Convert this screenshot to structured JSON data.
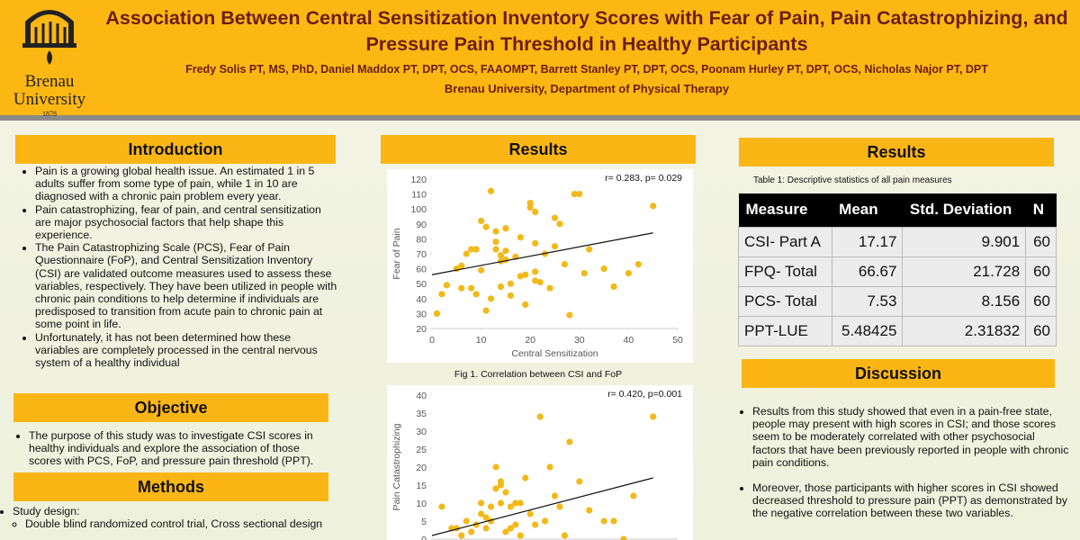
{
  "header": {
    "title": "Association Between Central Sensitization Inventory Scores with Fear of Pain, Pain Catastrophizing, and Pressure Pain Threshold in Healthy Participants",
    "authors": "Fredy Solis PT, MS, PhD, Daniel Maddox PT, DPT, OCS, FAAOMPT, Barrett Stanley PT, DPT, OCS, Poonam Hurley PT, DPT, OCS, Nicholas Najor PT, DPT",
    "affiliation": "Brenau University, Department of Physical Therapy",
    "logo": {
      "name": "Brenau",
      "subname": "University",
      "year": "1878"
    }
  },
  "introduction": {
    "heading": "Introduction",
    "bullets": [
      "Pain is a growing global health issue. An estimated 1 in 5 adults suffer from some type of pain, while 1 in 10 are diagnosed with a chronic pain problem every year.",
      "Pain catastrophizing, fear of pain, and central sensitization are major psychosocial factors that help shape this experience.",
      "The Pain Catastrophizing Scale (PCS), Fear of Pain Questionnaire (FoP), and Central Sensitization Inventory (CSI) are validated outcome measures used to assess these variables, respectively. They have been utilized in people with chronic pain conditions to help determine if individuals are predisposed to transition from acute pain to chronic pain at some point in life.",
      "Unfortunately, it has not been determined how these variables are completely processed in the central nervous system of a healthy individual"
    ]
  },
  "objective": {
    "heading": "Objective",
    "bullets": [
      "The purpose of this study was to investigate CSI scores in healthy individuals and explore the association of those scores with PCS, FoP, and pressure pain threshold (PPT)."
    ]
  },
  "methods": {
    "heading": "Methods",
    "item": "Study design:",
    "subitem": "Double blind randomized control trial, Cross sectional design"
  },
  "results_figures": {
    "heading": "Results",
    "figures": [
      {
        "type": "scatter",
        "annotation": "r= 0.283, p= 0.029",
        "caption": "Fig 1. Correlation between CSI and FoP",
        "xlabel": "Central Sensitization",
        "ylabel": "Fear of Pain",
        "color": "#f2b91a",
        "xlim": [
          0,
          50
        ],
        "ylim": [
          20,
          120
        ],
        "xticks": [
          0,
          10,
          20,
          30,
          40,
          50
        ],
        "yticks": [
          20,
          30,
          40,
          50,
          60,
          70,
          80,
          90,
          100,
          110,
          120
        ],
        "x": [
          1,
          2,
          3,
          5,
          6,
          6,
          7,
          8,
          9,
          8,
          9,
          10,
          10,
          11,
          11,
          12,
          12,
          13,
          13,
          13,
          14,
          14,
          14,
          15,
          15,
          15,
          16,
          16,
          17,
          18,
          19,
          19,
          20,
          20,
          21,
          21,
          21,
          21,
          22,
          23,
          25,
          25,
          26,
          27,
          28,
          29,
          30,
          31,
          32,
          35,
          37,
          40,
          42,
          45,
          24,
          18
        ],
        "y": [
          30,
          43,
          49,
          60,
          62,
          47,
          70,
          73,
          73,
          47,
          43,
          59,
          92,
          88,
          32,
          112,
          40,
          85,
          78,
          73,
          69,
          65,
          48,
          72,
          66,
          87,
          50,
          42,
          68,
          81,
          56,
          36,
          104,
          101,
          98,
          58,
          52,
          77,
          51,
          70,
          94,
          75,
          90,
          63,
          29,
          110,
          110,
          57,
          73,
          60,
          48,
          57,
          63,
          102,
          47,
          55
        ],
        "trendline": {
          "x": [
            0,
            45
          ],
          "y": [
            56,
            84
          ]
        }
      },
      {
        "type": "scatter",
        "annotation": "r= 0.420, p=0.001",
        "ylabel": "Pain Catastrophizing",
        "color": "#f2b91a",
        "xlim": [
          0,
          50
        ],
        "ylim": [
          0,
          40
        ],
        "yticks": [
          0,
          5,
          10,
          15,
          20,
          25,
          30,
          35,
          40
        ],
        "x": [
          2,
          4,
          5,
          6,
          7,
          8,
          9,
          10,
          10,
          11,
          11,
          12,
          12,
          13,
          13,
          14,
          14,
          14,
          15,
          15,
          16,
          16,
          17,
          17,
          18,
          18,
          19,
          20,
          22,
          23,
          24,
          25,
          26,
          28,
          30,
          32,
          35,
          37,
          39,
          41,
          45,
          21,
          27
        ],
        "y": [
          9,
          3,
          3,
          1,
          5,
          2,
          4,
          7,
          10,
          3,
          6,
          9,
          5,
          14,
          20,
          16,
          10,
          15,
          13,
          2,
          3,
          9,
          10,
          4,
          10,
          1,
          17,
          7,
          34,
          5,
          20,
          12,
          9,
          27,
          16,
          8,
          5,
          5,
          0,
          12,
          34,
          4,
          1
        ],
        "trendline": {
          "x": [
            0,
            45
          ],
          "y": [
            1,
            17
          ]
        }
      }
    ]
  },
  "results_table": {
    "heading": "Results",
    "caption": "Table 1: Descriptive statistics of all pain measures",
    "columns": [
      "Measure",
      "Mean",
      "Std. Deviation",
      "N"
    ],
    "rows": [
      [
        "CSI- Part A",
        17.17,
        9.901,
        60
      ],
      [
        "FPQ- Total",
        66.67,
        21.728,
        60
      ],
      [
        "PCS- Total",
        7.53,
        8.156,
        60
      ],
      [
        "PPT-LUE",
        5.48425,
        2.31832,
        60
      ]
    ]
  },
  "discussion": {
    "heading": "Discussion",
    "bullets": [
      "Results from this study showed that even in a pain-free state, people may present with high scores in CSI; and those scores seem to be moderately correlated with other psychosocial factors that have been previously reported in people with chronic pain conditions.",
      "Moreover, those participants with higher scores in CSI showed decreased threshold to pressure pain (PPT) as demonstrated by the negative correlation between these two variables."
    ]
  }
}
